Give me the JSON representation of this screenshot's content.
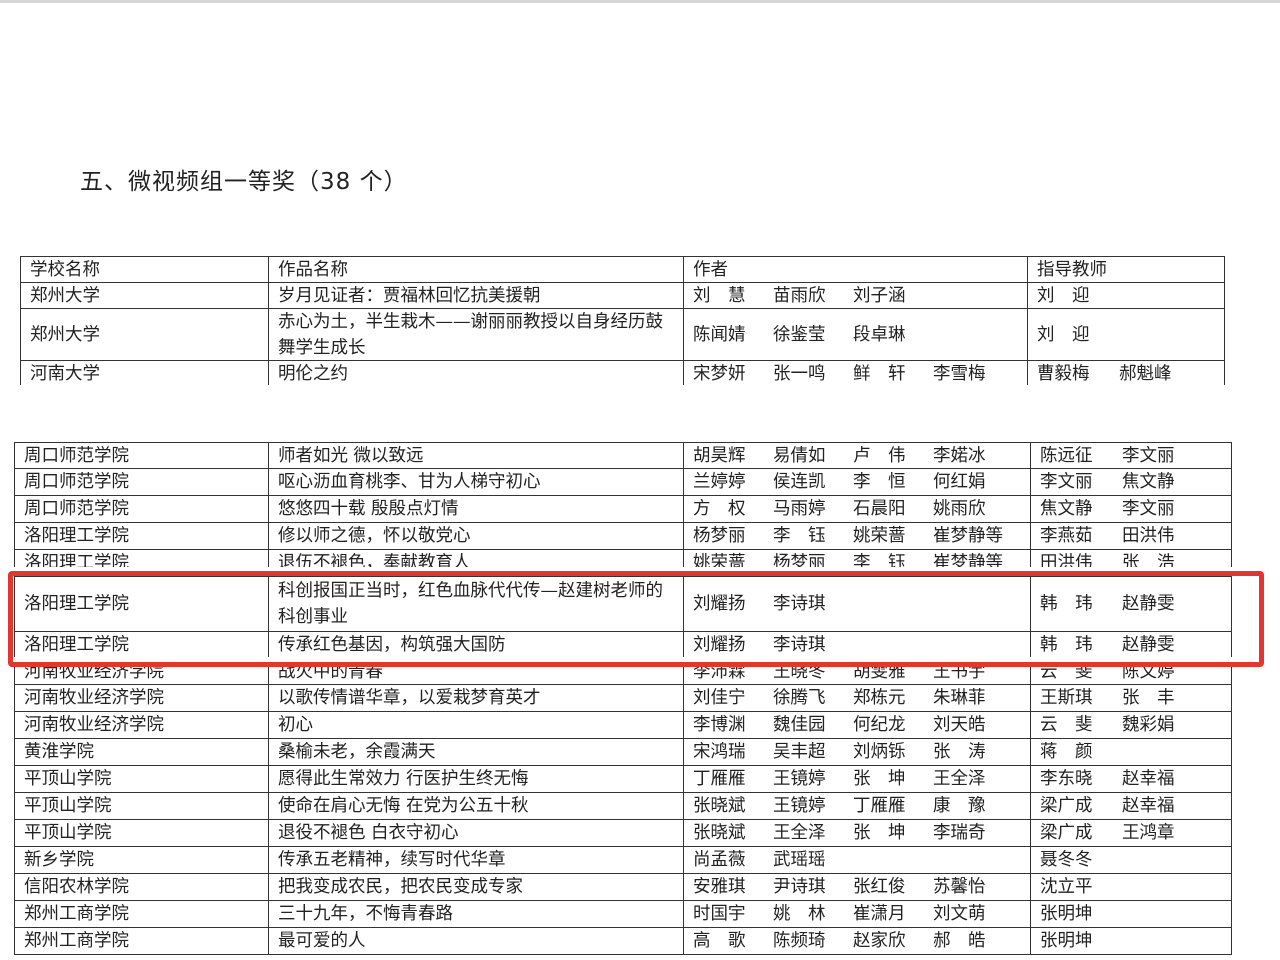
{
  "title": "五、微视频组一等奖（38 个）",
  "headers": [
    "学校名称",
    "作品名称",
    "作者",
    "指导教师"
  ],
  "table1": [
    {
      "school": "郑州大学",
      "work": "岁月见证者：贾福林回忆抗美援朝",
      "authors": [
        "刘　慧",
        "苗雨欣",
        "刘子涵"
      ],
      "teachers": [
        "刘　迎"
      ]
    },
    {
      "school": "郑州大学",
      "work": "赤心为土，半生栽木——谢丽丽教授以自身经历鼓舞学生成长",
      "authors": [
        "陈闻婧",
        "徐鉴莹",
        "段卓琳"
      ],
      "teachers": [
        "刘　迎"
      ]
    },
    {
      "school": "河南大学",
      "work": "明伦之约",
      "authors": [
        "宋梦妍",
        "张一鸣",
        "鲜　轩",
        "李雪梅"
      ],
      "teachers": [
        "曹毅梅",
        "郝魁峰"
      ]
    }
  ],
  "table2": [
    {
      "school": "周口师范学院",
      "work": "师者如光 微以致远",
      "authors": [
        "胡昊辉",
        "易倩如",
        "卢　伟",
        "李婼冰"
      ],
      "teachers": [
        "陈远征",
        "李文丽"
      ]
    },
    {
      "school": "周口师范学院",
      "work": "呕心沥血育桃李、甘为人梯守初心",
      "authors": [
        "兰婷婷",
        "侯连凯",
        "李　恒",
        "何红娟"
      ],
      "teachers": [
        "李文丽",
        "焦文静"
      ]
    },
    {
      "school": "周口师范学院",
      "work": "悠悠四十载 殷殷点灯情",
      "authors": [
        "方　权",
        "马雨婷",
        "石晨阳",
        "姚雨欣"
      ],
      "teachers": [
        "焦文静",
        "李文丽"
      ]
    },
    {
      "school": "洛阳理工学院",
      "work": "修以师之德，怀以敬党心",
      "authors": [
        "杨梦丽",
        "李　钰",
        "姚荣蔷",
        "崔梦静等"
      ],
      "teachers": [
        "李燕茹",
        "田洪伟"
      ]
    },
    {
      "school": "洛阳理工学院",
      "work": "退伍不褪色，奉献教育人",
      "authors": [
        "姚荣蔷",
        "杨梦丽",
        "李　钰",
        "崔梦静等"
      ],
      "teachers": [
        "田洪伟",
        "张　浩"
      ]
    },
    {
      "school": "洛阳理工学院",
      "work": "科创报国正当时，红色血脉代代传—赵建树老师的科创事业",
      "authors": [
        "刘耀扬",
        "李诗琪"
      ],
      "teachers": [
        "韩　玮",
        "赵静雯"
      ],
      "highlighted": true
    },
    {
      "school": "洛阳理工学院",
      "work": "传承红色基因，构筑强大国防",
      "authors": [
        "刘耀扬",
        "李诗琪"
      ],
      "teachers": [
        "韩　玮",
        "赵静雯"
      ],
      "highlighted": true
    },
    {
      "school": "河南牧业经济学院",
      "work": "战火中的青春",
      "authors": [
        "李沛霖",
        "王晓冬",
        "胡雯雅",
        "王书宇"
      ],
      "teachers": [
        "云　斐",
        "陈文婷"
      ]
    },
    {
      "school": "河南牧业经济学院",
      "work": "以歌传情谱华章，以爱栽梦育英才",
      "authors": [
        "刘佳宁",
        "徐腾飞",
        "郑栋元",
        "朱琳菲"
      ],
      "teachers": [
        "王斯琪",
        "张　丰"
      ]
    },
    {
      "school": "河南牧业经济学院",
      "work": "初心",
      "authors": [
        "李博渊",
        "魏佳园",
        "何纪龙",
        "刘天皓"
      ],
      "teachers": [
        "云　斐",
        "魏彩娟"
      ]
    },
    {
      "school": "黄淮学院",
      "work": "桑榆未老，余霞满天",
      "authors": [
        "宋鸿瑞",
        "吴丰超",
        "刘炳铄",
        "张　涛"
      ],
      "teachers": [
        "蒋　颜"
      ]
    },
    {
      "school": "平顶山学院",
      "work": "愿得此生常效力 行医护生终无悔",
      "authors": [
        "丁雁雁",
        "王镜婷",
        "张　坤",
        "王全泽"
      ],
      "teachers": [
        "李东晓",
        "赵幸福"
      ]
    },
    {
      "school": "平顶山学院",
      "work": "使命在肩心无悔 在党为公五十秋",
      "authors": [
        "张晓斌",
        "王镜婷",
        "丁雁雁",
        "康　豫"
      ],
      "teachers": [
        "梁广成",
        "赵幸福"
      ]
    },
    {
      "school": "平顶山学院",
      "work": "退役不褪色 白衣守初心",
      "authors": [
        "张晓斌",
        "王全泽",
        "张　坤",
        "李瑞奇"
      ],
      "teachers": [
        "梁广成",
        "王鸿章"
      ]
    },
    {
      "school": "新乡学院",
      "work": "传承五老精神，续写时代华章",
      "authors": [
        "尚孟薇",
        "武瑶瑶"
      ],
      "teachers": [
        "聂冬冬"
      ]
    },
    {
      "school": "信阳农林学院",
      "work": "把我变成农民，把农民变成专家",
      "authors": [
        "安雅琪",
        "尹诗琪",
        "张红俊",
        "苏馨怡"
      ],
      "teachers": [
        "沈立平"
      ]
    },
    {
      "school": "郑州工商学院",
      "work": "三十九年，不悔青春路",
      "authors": [
        "时国宇",
        "姚　林",
        "崔潇月",
        "刘文萌"
      ],
      "teachers": [
        "张明坤"
      ]
    },
    {
      "school": "郑州工商学院",
      "work": "最可爱的人",
      "authors": [
        "高　歌",
        "陈频琦",
        "赵家欣",
        "郝　皓"
      ],
      "teachers": [
        "张明坤"
      ]
    }
  ],
  "colors": {
    "highlight_box": "#e2362e",
    "grid": "#333333"
  }
}
